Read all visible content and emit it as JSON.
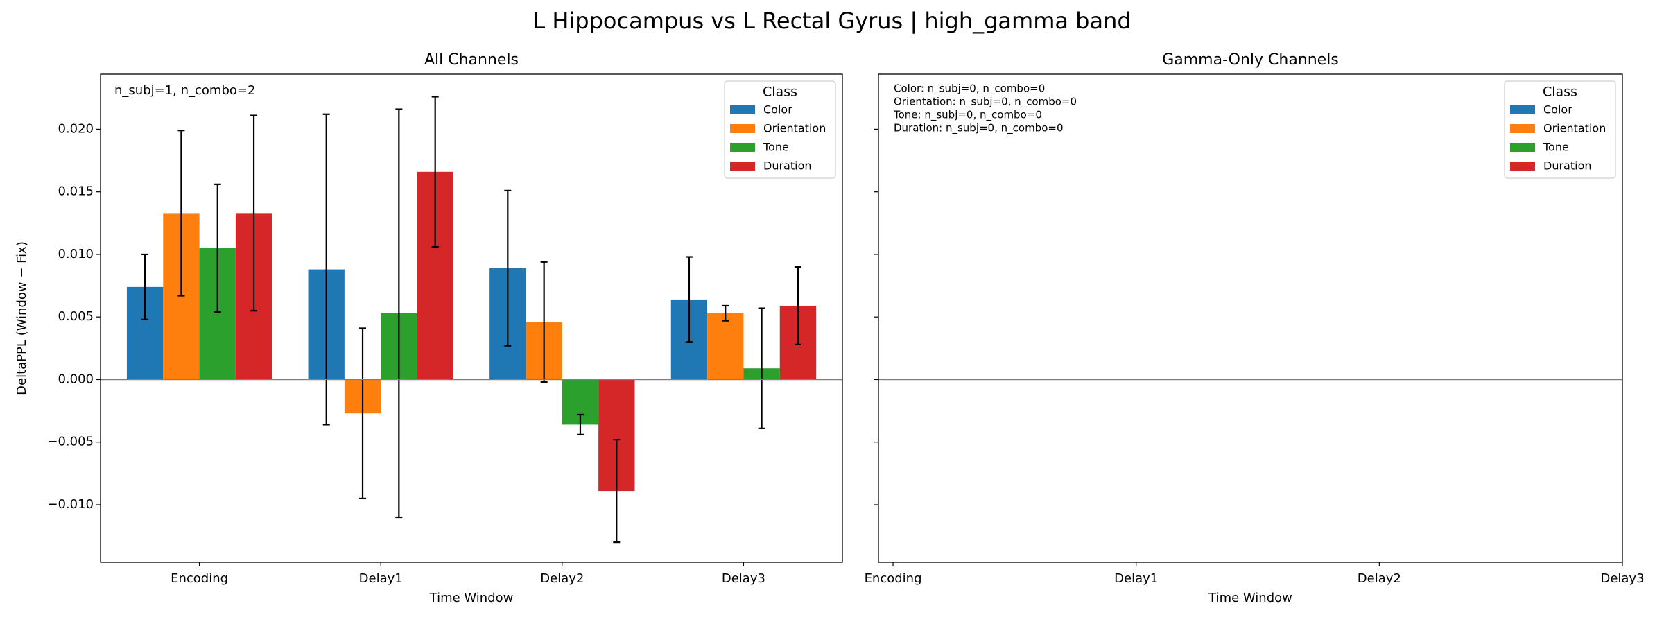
{
  "title": "L Hippocampus vs L Rectal Gyrus  |  high_gamma band",
  "chart_data": [
    {
      "type": "bar",
      "title": "All Channels",
      "x_label": "Time Window",
      "y_label": "DeltaPPL (Window − Fix)",
      "annotation": "n_subj=1, n_combo=2",
      "categories": [
        "Encoding",
        "Delay1",
        "Delay2",
        "Delay3"
      ],
      "legend_title": "Class",
      "legend": "upper right",
      "series": [
        {
          "name": "Color",
          "color": "#1f77b4",
          "values": [
            0.0074,
            0.0088,
            0.0089,
            0.0064
          ],
          "errors": [
            0.0026,
            0.0124,
            0.0062,
            0.0034
          ]
        },
        {
          "name": "Orientation",
          "color": "#ff7f0e",
          "values": [
            0.0133,
            -0.0027,
            0.0046,
            0.0053
          ],
          "errors": [
            0.0066,
            0.0068,
            0.0048,
            0.0006
          ]
        },
        {
          "name": "Tone",
          "color": "#2ca02c",
          "values": [
            0.0105,
            0.0053,
            -0.0036,
            0.0009
          ],
          "errors": [
            0.0051,
            0.0163,
            0.0008,
            0.0048
          ]
        },
        {
          "name": "Duration",
          "color": "#d62728",
          "values": [
            0.0133,
            0.0166,
            -0.0089,
            0.0059
          ],
          "errors": [
            0.0078,
            0.006,
            0.0041,
            0.0031
          ]
        }
      ],
      "ylim": [
        -0.0146,
        0.0244
      ],
      "yticks": [
        {
          "value": -0.01,
          "label": "−0.010"
        },
        {
          "value": -0.005,
          "label": "−0.005"
        },
        {
          "value": 0,
          "label": "0.000"
        },
        {
          "value": 0.005,
          "label": "0.005"
        },
        {
          "value": 0.01,
          "label": "0.010"
        },
        {
          "value": 0.015,
          "label": "0.015"
        },
        {
          "value": 0.02,
          "label": "0.020"
        }
      ]
    },
    {
      "type": "bar",
      "title": "Gamma-Only Channels",
      "x_label": "Time Window",
      "annotations": [
        "Color: n_subj=0, n_combo=0",
        "Orientation: n_subj=0, n_combo=0",
        "Tone: n_subj=0, n_combo=0",
        "Duration: n_subj=0, n_combo=0"
      ],
      "legend_title": "Class",
      "legend": "upper right",
      "series": [
        {
          "name": "Color",
          "color": "#1f77b4",
          "values": []
        },
        {
          "name": "Orientation",
          "color": "#ff7f0e",
          "values": []
        },
        {
          "name": "Tone",
          "color": "#2ca02c",
          "values": []
        },
        {
          "name": "Duration",
          "color": "#d62728",
          "values": []
        }
      ],
      "xlim": [
        -0.06,
        3
      ],
      "xticks": [
        {
          "value": 0,
          "label": "Encoding"
        },
        {
          "value": 1,
          "label": "Delay1"
        },
        {
          "value": 2,
          "label": "Delay2"
        },
        {
          "value": 3,
          "label": "Delay3"
        }
      ],
      "ylim": [
        -0.0146,
        0.0244
      ],
      "shared_y": true,
      "yticks": [
        -0.01,
        -0.005,
        0,
        0.005,
        0.01,
        0.015,
        0.02
      ]
    }
  ]
}
